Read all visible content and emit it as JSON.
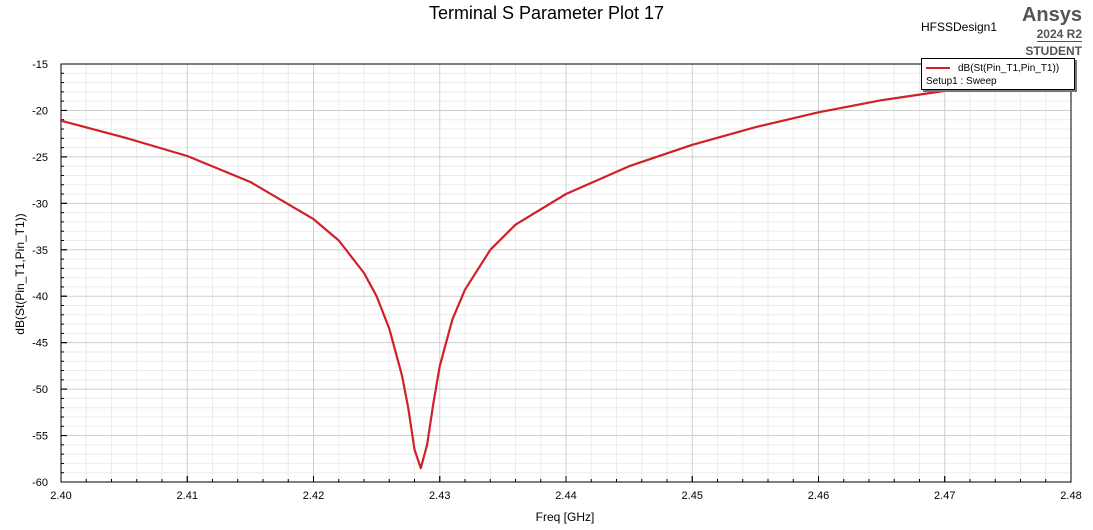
{
  "chart_data": {
    "type": "line",
    "title": "Terminal S Parameter Plot 17",
    "xlabel": "Freq [GHz]",
    "ylabel": "dB(St(Pin_T1,Pin_T1))",
    "xlim": [
      2.4,
      2.48
    ],
    "ylim": [
      -60,
      -15
    ],
    "x_ticks": [
      "2.40",
      "2.41",
      "2.42",
      "2.43",
      "2.44",
      "2.45",
      "2.46",
      "2.47",
      "2.48"
    ],
    "y_ticks": [
      "-15",
      "-20",
      "-25",
      "-30",
      "-35",
      "-40",
      "-45",
      "-50",
      "-55",
      "-60"
    ],
    "grid": true,
    "legend_position": "top-right",
    "series": [
      {
        "name": "dB(St(Pin_T1,Pin_T1))",
        "color": "#d0202a",
        "x": [
          2.4,
          2.405,
          2.41,
          2.415,
          2.42,
          2.422,
          2.424,
          2.425,
          2.426,
          2.427,
          2.4275,
          2.428,
          2.4285,
          2.429,
          2.4295,
          2.43,
          2.431,
          2.432,
          2.434,
          2.436,
          2.44,
          2.445,
          2.45,
          2.455,
          2.46,
          2.465,
          2.47,
          2.4715
        ],
        "y": [
          -21.1,
          -22.9,
          -24.9,
          -27.7,
          -31.7,
          -34.0,
          -37.5,
          -40.0,
          -43.5,
          -48.5,
          -52.0,
          -56.5,
          -58.5,
          -56.0,
          -51.5,
          -47.5,
          -42.5,
          -39.3,
          -35.0,
          -32.3,
          -29.0,
          -26.0,
          -23.7,
          -21.8,
          -20.2,
          -18.9,
          -17.9,
          -17.6
        ]
      }
    ]
  },
  "header": {
    "design_name": "HFSSDesign1",
    "brand": "Ansys",
    "version": "2024 R2",
    "edition": "STUDENT"
  },
  "legend": {
    "setup": "Setup1 : Sweep"
  }
}
